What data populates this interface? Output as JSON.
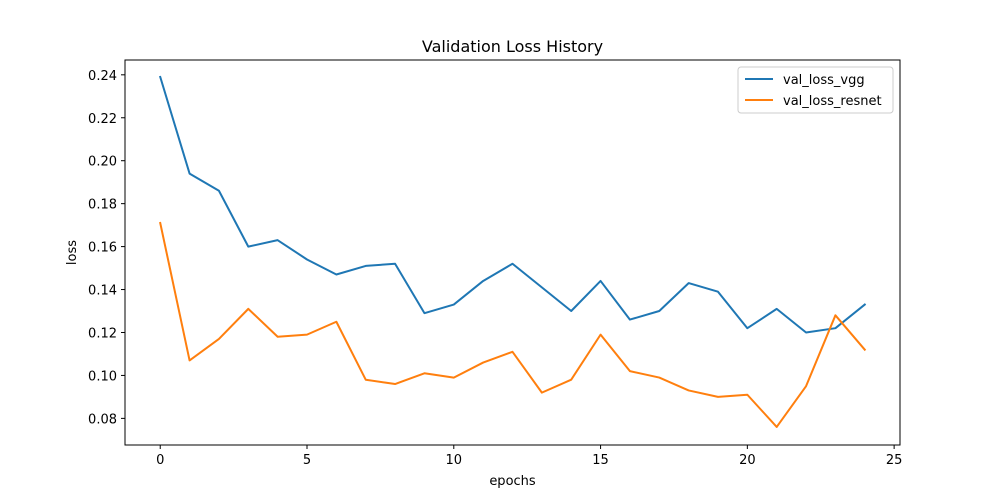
{
  "chart_data": {
    "type": "line",
    "title": "Validation Loss History",
    "xlabel": "epochs",
    "ylabel": "loss",
    "xlim": [
      -1.2,
      25.2
    ],
    "ylim": [
      0.0676,
      0.2469
    ],
    "xticks": [
      0,
      5,
      10,
      15,
      20,
      25
    ],
    "yticks": [
      0.08,
      0.1,
      0.12,
      0.14,
      0.16,
      0.18,
      0.2,
      0.22,
      0.24
    ],
    "x": [
      0,
      1,
      2,
      3,
      4,
      5,
      6,
      7,
      8,
      9,
      10,
      11,
      12,
      13,
      14,
      15,
      16,
      17,
      18,
      19,
      20,
      21,
      22,
      23,
      24
    ],
    "series": [
      {
        "name": "val_loss_vgg",
        "color": "#1f77b4",
        "values": [
          0.239,
          0.194,
          0.186,
          0.16,
          0.163,
          0.154,
          0.147,
          0.151,
          0.152,
          0.129,
          0.133,
          0.144,
          0.152,
          0.141,
          0.13,
          0.144,
          0.126,
          0.13,
          0.143,
          0.139,
          0.122,
          0.131,
          0.12,
          0.122,
          0.133
        ]
      },
      {
        "name": "val_loss_resnet",
        "color": "#ff7f0e",
        "values": [
          0.171,
          0.107,
          0.117,
          0.131,
          0.118,
          0.119,
          0.125,
          0.098,
          0.096,
          0.101,
          0.099,
          0.106,
          0.111,
          0.092,
          0.098,
          0.119,
          0.102,
          0.099,
          0.093,
          0.09,
          0.091,
          0.076,
          0.095,
          0.128,
          0.112
        ]
      }
    ],
    "grid": false,
    "legend": "top-right"
  }
}
